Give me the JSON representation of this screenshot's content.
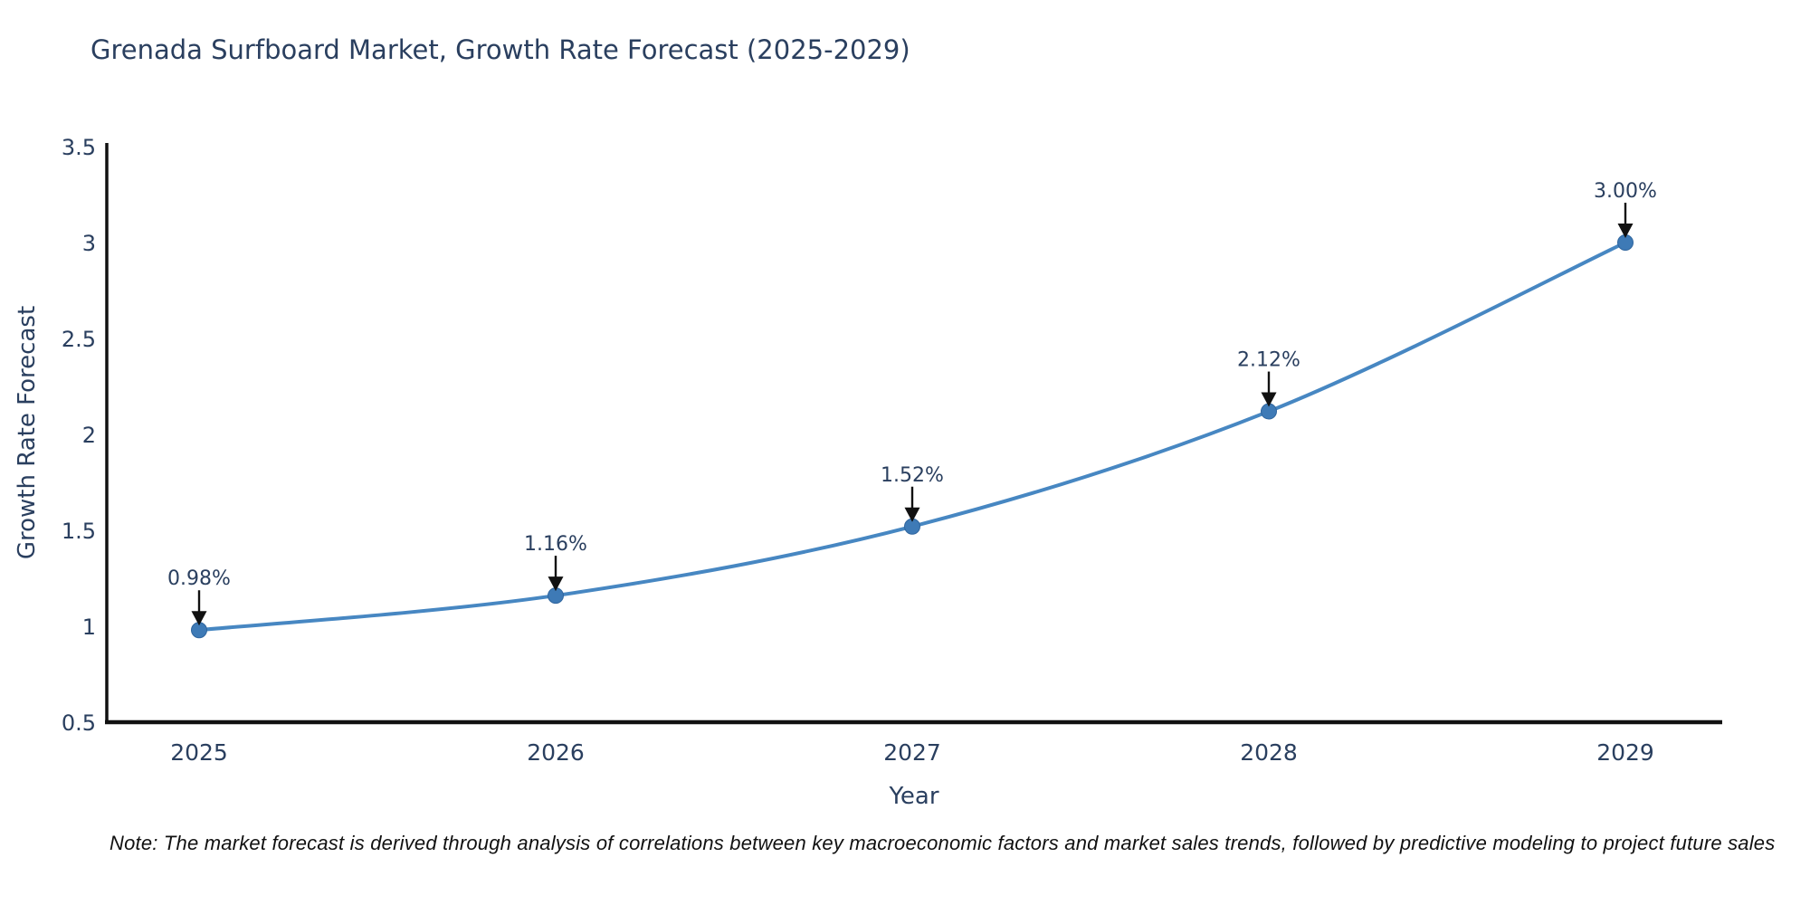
{
  "page": {
    "background": "#ffffff"
  },
  "chart_data": {
    "type": "line",
    "title": "Grenada Surfboard Market, Growth Rate Forecast (2025-2029)",
    "xlabel": "Year",
    "ylabel": "Growth Rate Forecast",
    "categories": [
      "2025",
      "2026",
      "2027",
      "2028",
      "2029"
    ],
    "values": [
      0.98,
      1.16,
      1.52,
      2.12,
      3.0
    ],
    "point_labels": [
      "0.98%",
      "1.16%",
      "1.52%",
      "2.12%",
      "3.00%"
    ],
    "series": [
      {
        "name": "Growth Rate Forecast",
        "values": [
          0.98,
          1.16,
          1.52,
          2.12,
          3.0
        ]
      }
    ],
    "ylim": [
      0.5,
      3.5
    ],
    "yticks": [
      0.5,
      1,
      1.5,
      2,
      2.5,
      3,
      3.5
    ],
    "grid": false,
    "legend_position": "none",
    "line_shape": "spline",
    "annotation_style": "value label above point with downward black arrow",
    "colors": {
      "line": "#4787c2",
      "marker": "#3e7ab6",
      "marker_edge": "#2f659e",
      "axis": "#111111",
      "tick_text": "#2a3f5f",
      "annotation_text": "#2a3f5f",
      "annotation_arrow": "#111111",
      "title_text": "#2a3f5f"
    }
  },
  "note": {
    "text": "Note: The market forecast is derived through analysis of correlations between key macroeconomic factors and market sales trends, followed by predictive modeling to project future sales"
  }
}
